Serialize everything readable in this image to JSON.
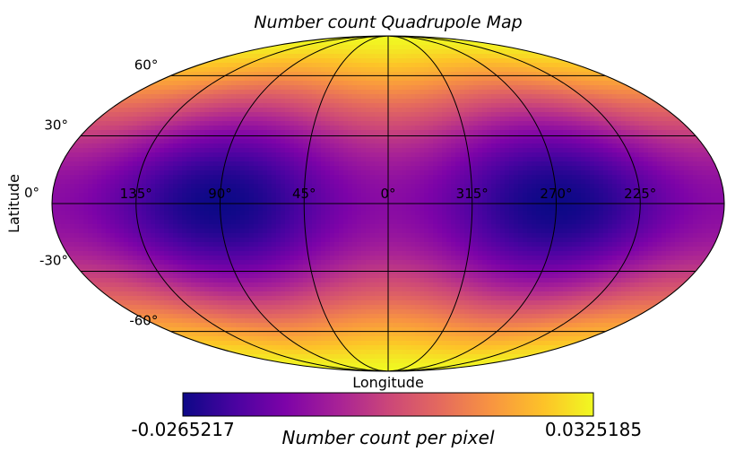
{
  "chart_data": {
    "type": "heatmap",
    "projection": "mollweide",
    "title": "Number count Quadrupole Map",
    "xlabel": "Longitude",
    "ylabel": "Latitude",
    "colormap": "plasma",
    "grid": true,
    "longitude_ticks": [
      {
        "lon": 135,
        "label": "135°"
      },
      {
        "lon": 90,
        "label": "90°"
      },
      {
        "lon": 45,
        "label": "45°"
      },
      {
        "lon": 0,
        "label": "0°"
      },
      {
        "lon": 315,
        "label": "315°"
      },
      {
        "lon": 270,
        "label": "270°"
      },
      {
        "lon": 225,
        "label": "225°"
      }
    ],
    "latitude_ticks": [
      {
        "lat": 60,
        "label": "60°"
      },
      {
        "lat": 30,
        "label": "30°"
      },
      {
        "lat": 0,
        "label": "0°"
      },
      {
        "lat": -30,
        "label": "-30°"
      },
      {
        "lat": -60,
        "label": "-60°"
      }
    ],
    "colorbar": {
      "min": -0.0265217,
      "max": 0.0325185,
      "min_label": "-0.0265217",
      "max_label": "0.0325185",
      "label": "Number count per pixel",
      "orientation": "horizontal",
      "placement": "bottom"
    },
    "field": {
      "description_model": "quadrupole: maximum at poles, minima on equator at longitudes 90 and 270",
      "minima": [
        {
          "lon": 90,
          "lat": 0
        },
        {
          "lon": 270,
          "lat": 0
        }
      ],
      "maxima": [
        {
          "lat": 90
        },
        {
          "lat": -90
        }
      ]
    }
  }
}
